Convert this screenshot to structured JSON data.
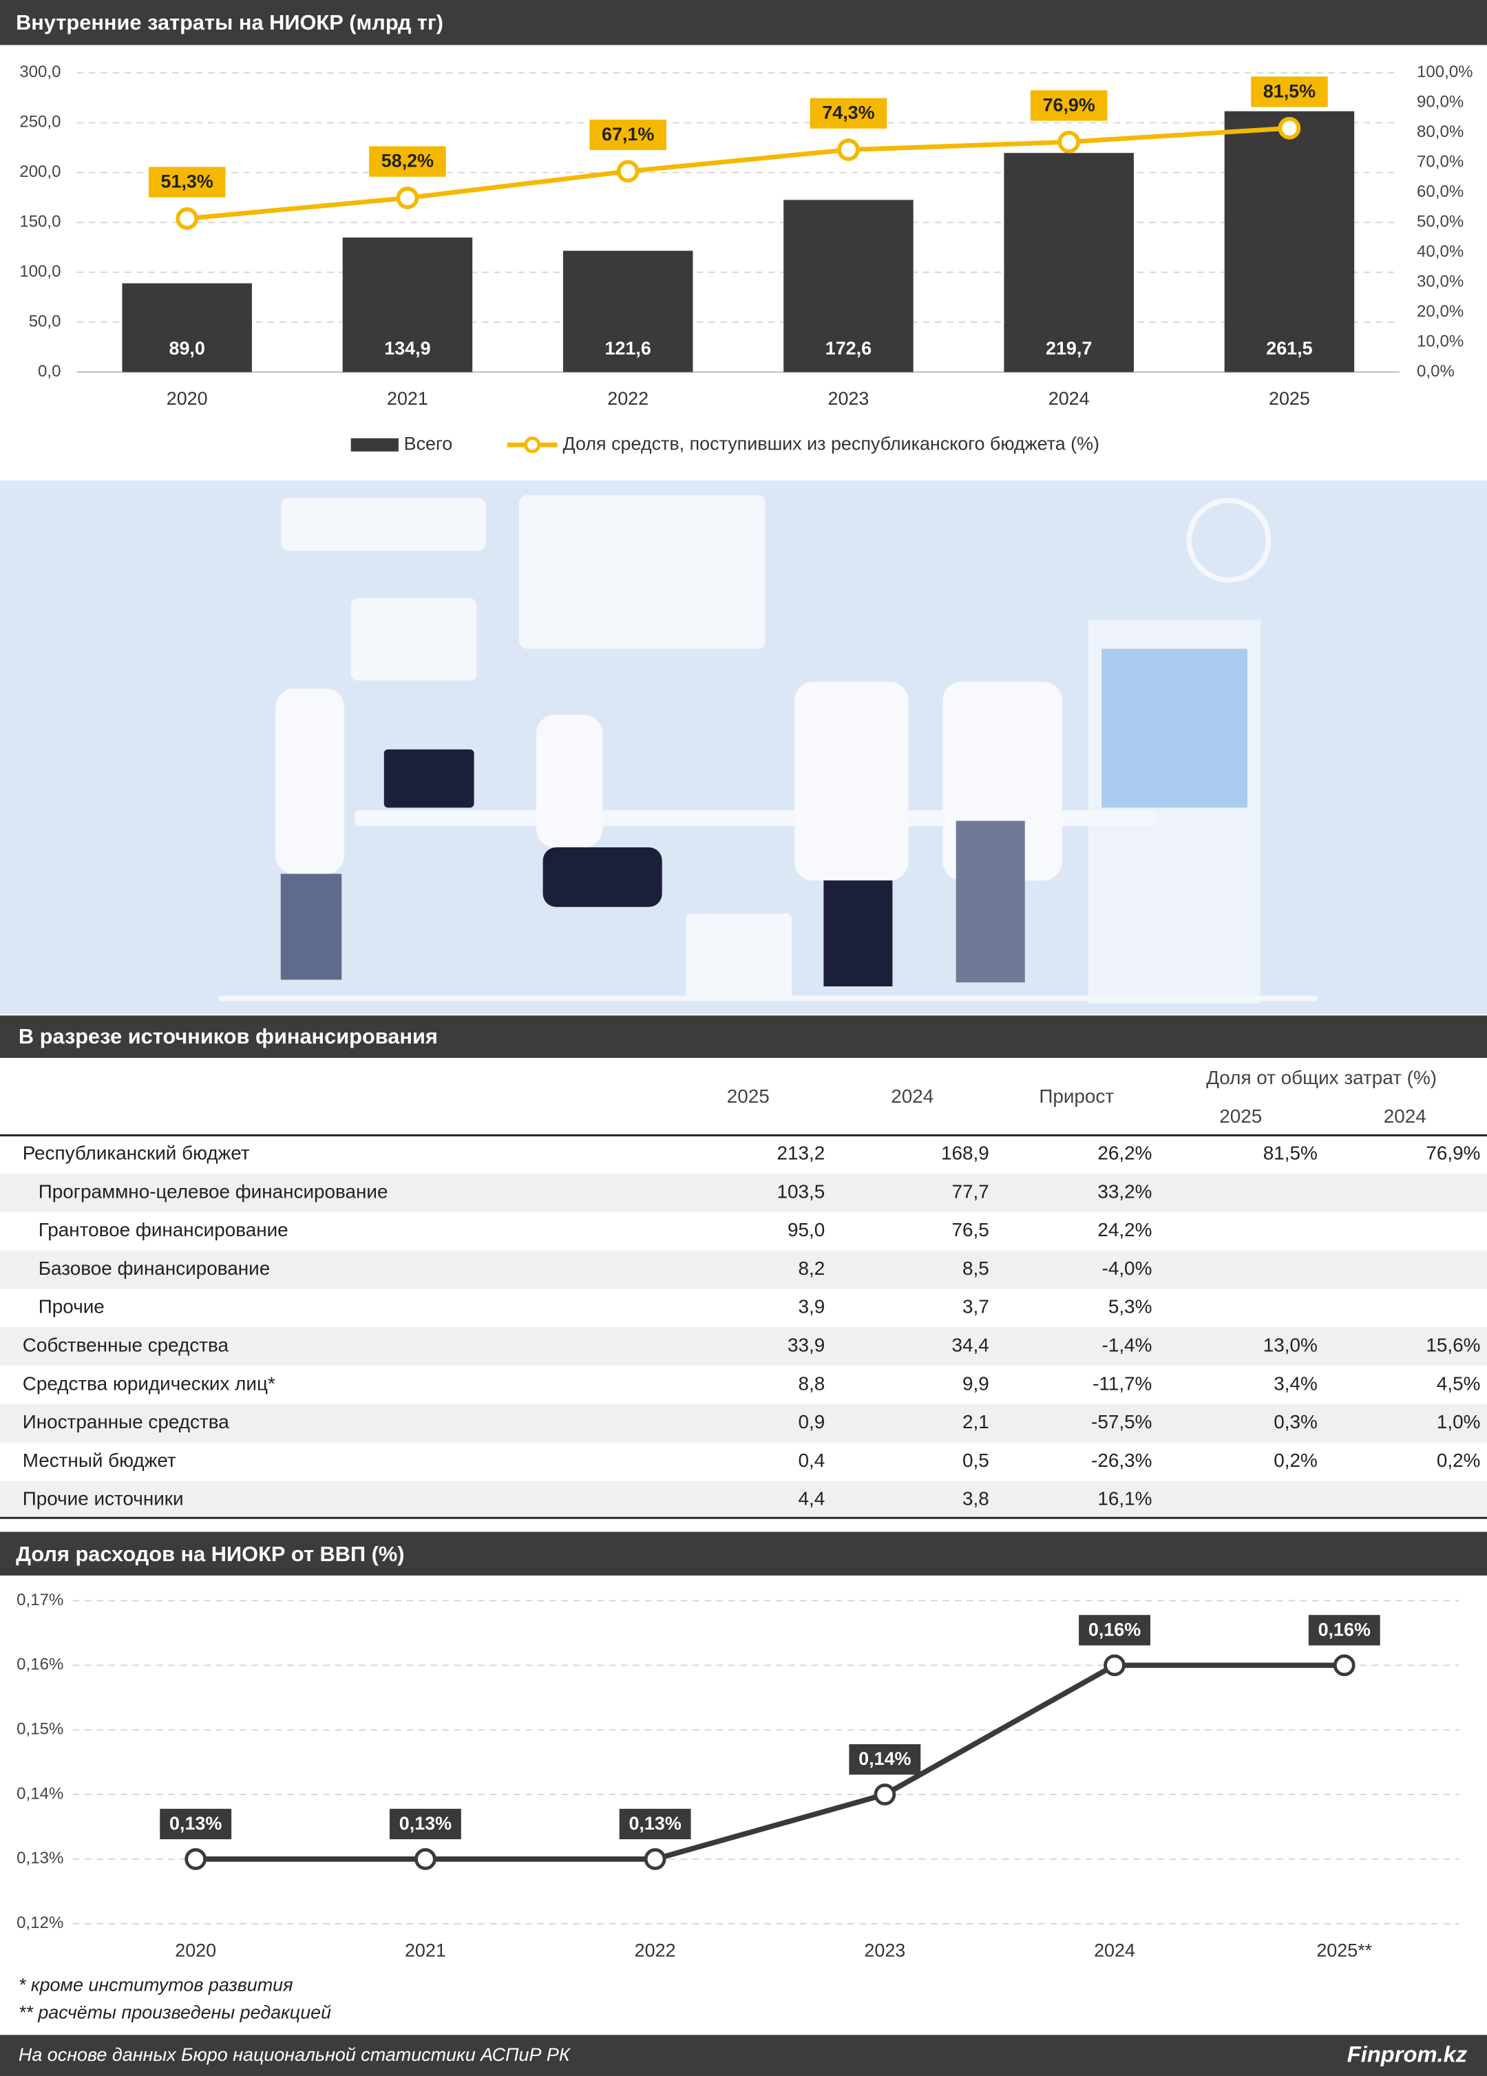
{
  "chart_data": [
    {
      "type": "combo",
      "title": "Внутренние затраты на НИОКР (млрд тг)",
      "categories": [
        "2020",
        "2021",
        "2022",
        "2023",
        "2024",
        "2025"
      ],
      "series": [
        {
          "name": "Всего",
          "type": "bar",
          "color": "#3a3a3a",
          "values": [
            89.0,
            134.9,
            121.6,
            172.6,
            219.7,
            261.5
          ],
          "value_labels": [
            "89,0",
            "134,9",
            "121,6",
            "172,6",
            "219,7",
            "261,5"
          ]
        },
        {
          "name": "Доля средств, поступивших из республиканского бюджета (%)",
          "type": "line",
          "axis": "y2",
          "color": "#f5b800",
          "values": [
            51.3,
            58.2,
            67.1,
            74.3,
            76.9,
            81.5
          ],
          "value_labels": [
            "51,3%",
            "58,2%",
            "67,1%",
            "74,3%",
            "76,9%",
            "81,5%"
          ]
        }
      ],
      "ylim": [
        0,
        300
      ],
      "yticks": [
        {
          "value": 0,
          "label": "0,0"
        },
        {
          "value": 50,
          "label": "50,0"
        },
        {
          "value": 100,
          "label": "100,0"
        },
        {
          "value": 150,
          "label": "150,0"
        },
        {
          "value": 200,
          "label": "200,0"
        },
        {
          "value": 250,
          "label": "250,0"
        },
        {
          "value": 300,
          "label": "300,0"
        }
      ],
      "y2lim": [
        0,
        100
      ],
      "y2ticks": [
        {
          "value": 0,
          "label": "0,0%"
        },
        {
          "value": 10,
          "label": "10,0%"
        },
        {
          "value": 20,
          "label": "20,0%"
        },
        {
          "value": 30,
          "label": "30,0%"
        },
        {
          "value": 40,
          "label": "40,0%"
        },
        {
          "value": 50,
          "label": "50,0%"
        },
        {
          "value": 60,
          "label": "60,0%"
        },
        {
          "value": 70,
          "label": "70,0%"
        },
        {
          "value": 80,
          "label": "80,0%"
        },
        {
          "value": 90,
          "label": "90,0%"
        },
        {
          "value": 100,
          "label": "100,0%"
        }
      ],
      "grid": true,
      "legend": "bottom"
    },
    {
      "type": "line",
      "title": "Доля расходов на НИОКР от ВВП (%)",
      "categories": [
        "2020",
        "2021",
        "2022",
        "2023",
        "2024",
        "2025**"
      ],
      "color": "#3a3a3a",
      "values": [
        0.13,
        0.13,
        0.13,
        0.14,
        0.16,
        0.16
      ],
      "value_labels": [
        "0,13%",
        "0,13%",
        "0,13%",
        "0,14%",
        "0,16%",
        "0,16%"
      ],
      "ylim": [
        0.12,
        0.17
      ],
      "yticks": [
        {
          "value": 0.12,
          "label": "0,12%"
        },
        {
          "value": 0.13,
          "label": "0,13%"
        },
        {
          "value": 0.14,
          "label": "0,14%"
        },
        {
          "value": 0.15,
          "label": "0,15%"
        },
        {
          "value": 0.16,
          "label": "0,16%"
        },
        {
          "value": 0.17,
          "label": "0,17%"
        }
      ],
      "grid": true
    }
  ],
  "table": {
    "title": "В разрезе источников финансирования",
    "columns": [
      "2025",
      "2024",
      "Прирост"
    ],
    "group": {
      "label": "Доля от общих затрат (%)",
      "columns": [
        "2025",
        "2024"
      ]
    },
    "rows": [
      [
        "Республиканский бюджет",
        "213,2",
        "168,9",
        "26,2%",
        "81,5%",
        "76,9%"
      ],
      [
        "Программно-целевое финансирование",
        "103,5",
        "77,7",
        "33,2%",
        null,
        null
      ],
      [
        "Грантовое финансирование",
        "95,0",
        "76,5",
        "24,2%",
        null,
        null
      ],
      [
        "Базовое финансирование",
        "8,2",
        "8,5",
        "-4,0%",
        null,
        null
      ],
      [
        "Прочие",
        "3,9",
        "3,7",
        "5,3%",
        null,
        null
      ],
      [
        "Собственные средства",
        "33,9",
        "34,4",
        "-1,4%",
        "13,0%",
        "15,6%"
      ],
      [
        "Средства юридических лиц*",
        "8,8",
        "9,9",
        "-11,7%",
        "3,4%",
        "4,5%"
      ],
      [
        "Иностранные средства",
        "0,9",
        "2,1",
        "-57,5%",
        "0,3%",
        "1,0%"
      ],
      [
        "Местный бюджет",
        "0,4",
        "0,5",
        "-26,3%",
        "0,2%",
        "0,2%"
      ],
      [
        "Прочие источники",
        "4,4",
        "3,8",
        "16,1%",
        null,
        null
      ]
    ]
  },
  "footnotes": [
    "* кроме институтов развития",
    "** расчёты произведены редакцией"
  ],
  "footer": {
    "source": "На основе данных Бюро национальной статистики АСПиР РК",
    "brand": "Finprom.kz"
  }
}
